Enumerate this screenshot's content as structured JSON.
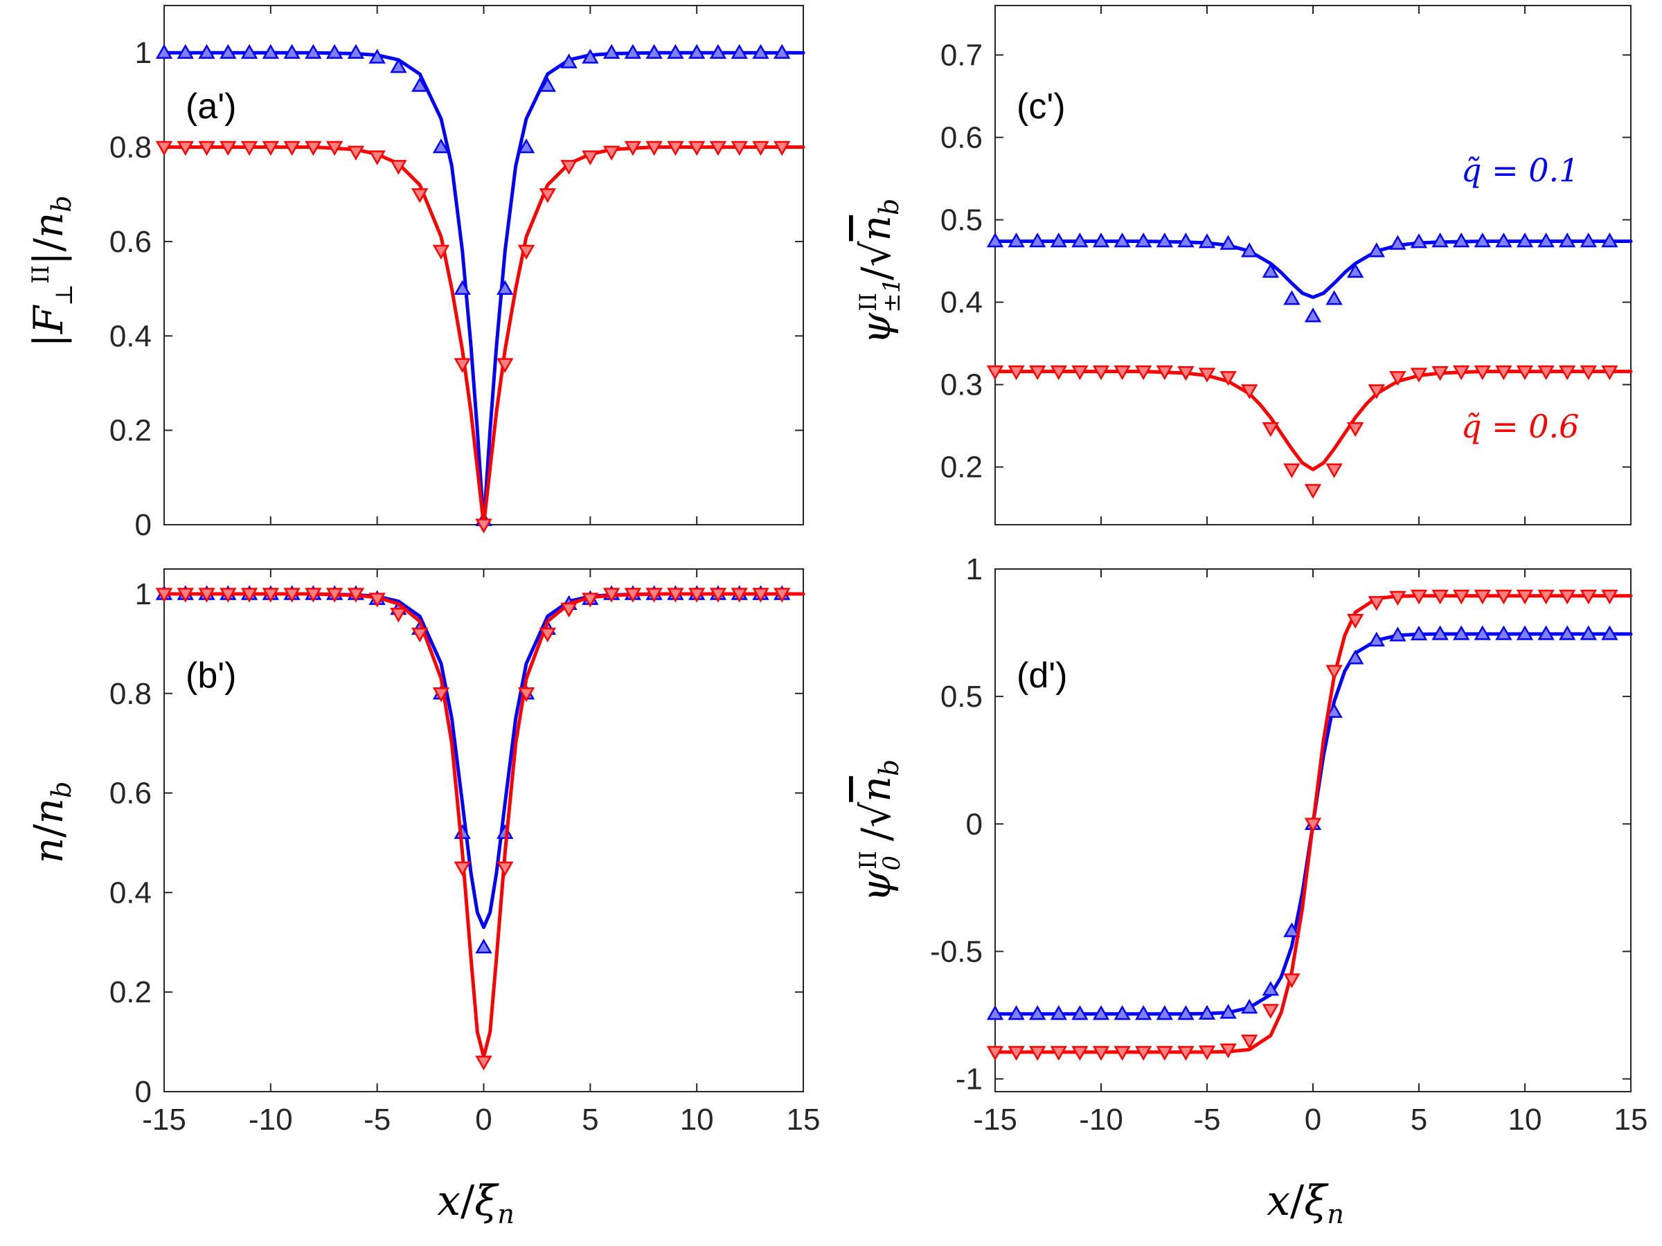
{
  "chart_data": [
    {
      "id": "a",
      "type": "line",
      "panel_label": "(a')",
      "ylabel": "|F⊥II|/nb",
      "xlabel": "",
      "xlim": [
        -15,
        15
      ],
      "ylim": [
        0,
        1.1
      ],
      "yticks": [
        "0",
        "0.2",
        "0.4",
        "0.6",
        "0.8",
        "1"
      ],
      "xticks": [],
      "grid": false,
      "series": [
        {
          "name": "q̃ = 0.1 (fit)",
          "color": "#0000ff",
          "kind": "line",
          "x": [
            -15,
            -8,
            -6,
            -5,
            -4,
            -3,
            -2,
            -1.5,
            -1,
            -0.6,
            -0.3,
            0,
            0.3,
            0.6,
            1,
            1.5,
            2,
            3,
            4,
            5,
            6,
            8,
            15
          ],
          "y": [
            1,
            1,
            0.998,
            0.995,
            0.985,
            0.955,
            0.86,
            0.76,
            0.58,
            0.38,
            0.2,
            0,
            0.2,
            0.38,
            0.58,
            0.76,
            0.86,
            0.955,
            0.985,
            0.995,
            0.998,
            1,
            1
          ]
        },
        {
          "name": "q̃ = 0.1 (numerical)",
          "color": "#0000ff",
          "kind": "marker",
          "marker": "triangle-up",
          "x": [
            -15,
            -14,
            -13,
            -12,
            -11,
            -10,
            -9,
            -8,
            -7,
            -6,
            -5,
            -4,
            -3,
            -2,
            -1,
            0,
            1,
            2,
            3,
            4,
            5,
            6,
            7,
            8,
            9,
            10,
            11,
            12,
            13,
            14
          ],
          "y": [
            1,
            1,
            1,
            1,
            1,
            1,
            1,
            1,
            1,
            1,
            0.99,
            0.97,
            0.93,
            0.8,
            0.5,
            0.01,
            0.5,
            0.8,
            0.93,
            0.98,
            0.99,
            1,
            1,
            1,
            1,
            1,
            1,
            1,
            1,
            1
          ]
        },
        {
          "name": "q̃ = 0.6 (fit)",
          "color": "#ff0000",
          "kind": "line",
          "x": [
            -15,
            -8,
            -6,
            -5,
            -4,
            -3,
            -2,
            -1.5,
            -1,
            -0.6,
            -0.3,
            0,
            0.3,
            0.6,
            1,
            1.5,
            2,
            3,
            4,
            5,
            6,
            8,
            15
          ],
          "y": [
            0.8,
            0.8,
            0.795,
            0.785,
            0.765,
            0.72,
            0.61,
            0.5,
            0.37,
            0.24,
            0.12,
            0,
            0.12,
            0.24,
            0.37,
            0.5,
            0.61,
            0.72,
            0.765,
            0.785,
            0.795,
            0.8,
            0.8
          ]
        },
        {
          "name": "q̃ = 0.6 (numerical)",
          "color": "#ff0000",
          "kind": "marker",
          "marker": "triangle-down",
          "x": [
            -15,
            -14,
            -13,
            -12,
            -11,
            -10,
            -9,
            -8,
            -7,
            -6,
            -5,
            -4,
            -3,
            -2,
            -1,
            0,
            1,
            2,
            3,
            4,
            5,
            6,
            7,
            8,
            9,
            10,
            11,
            12,
            13,
            14
          ],
          "y": [
            0.8,
            0.8,
            0.8,
            0.8,
            0.8,
            0.8,
            0.8,
            0.8,
            0.8,
            0.79,
            0.78,
            0.76,
            0.7,
            0.58,
            0.34,
            0,
            0.34,
            0.58,
            0.7,
            0.76,
            0.78,
            0.79,
            0.8,
            0.8,
            0.8,
            0.8,
            0.8,
            0.8,
            0.8,
            0.8
          ]
        }
      ]
    },
    {
      "id": "b",
      "type": "line",
      "panel_label": "(b')",
      "ylabel": "n/nb",
      "xlabel": "x/ξn",
      "xlim": [
        -15,
        15
      ],
      "ylim": [
        0,
        1.05
      ],
      "yticks": [
        "0",
        "0.2",
        "0.4",
        "0.6",
        "0.8",
        "1"
      ],
      "xticks": [
        "-15",
        "-10",
        "-5",
        "0",
        "5",
        "10",
        "15"
      ],
      "grid": false,
      "series": [
        {
          "name": "q̃ = 0.1 (fit)",
          "color": "#0000ff",
          "kind": "line",
          "x": [
            -15,
            -8,
            -6,
            -5,
            -4,
            -3,
            -2,
            -1.5,
            -1,
            -0.6,
            -0.3,
            0,
            0.3,
            0.6,
            1,
            1.5,
            2,
            3,
            4,
            5,
            6,
            8,
            15
          ],
          "y": [
            1,
            1,
            0.998,
            0.995,
            0.985,
            0.955,
            0.86,
            0.75,
            0.58,
            0.44,
            0.36,
            0.33,
            0.36,
            0.44,
            0.58,
            0.75,
            0.86,
            0.955,
            0.985,
            0.995,
            0.998,
            1,
            1
          ]
        },
        {
          "name": "q̃ = 0.1 (numerical)",
          "color": "#0000ff",
          "kind": "marker",
          "marker": "triangle-up",
          "x": [
            -15,
            -14,
            -13,
            -12,
            -11,
            -10,
            -9,
            -8,
            -7,
            -6,
            -5,
            -4,
            -3,
            -2,
            -1,
            0,
            1,
            2,
            3,
            4,
            5,
            6,
            7,
            8,
            9,
            10,
            11,
            12,
            13,
            14
          ],
          "y": [
            1,
            1,
            1,
            1,
            1,
            1,
            1,
            1,
            1,
            1,
            0.99,
            0.97,
            0.93,
            0.8,
            0.52,
            0.29,
            0.52,
            0.8,
            0.93,
            0.98,
            0.99,
            1,
            1,
            1,
            1,
            1,
            1,
            1,
            1,
            1
          ]
        },
        {
          "name": "q̃ = 0.6 (fit)",
          "color": "#ff0000",
          "kind": "line",
          "x": [
            -15,
            -8,
            -6,
            -5,
            -4,
            -3,
            -2,
            -1.5,
            -1,
            -0.6,
            -0.3,
            0,
            0.3,
            0.6,
            1,
            1.5,
            2,
            3,
            4,
            5,
            6,
            8,
            15
          ],
          "y": [
            1,
            1,
            0.997,
            0.993,
            0.98,
            0.945,
            0.83,
            0.7,
            0.48,
            0.27,
            0.12,
            0.07,
            0.12,
            0.27,
            0.48,
            0.7,
            0.83,
            0.945,
            0.98,
            0.993,
            0.997,
            1,
            1
          ]
        },
        {
          "name": "q̃ = 0.6 (numerical)",
          "color": "#ff0000",
          "kind": "marker",
          "marker": "triangle-down",
          "x": [
            -15,
            -14,
            -13,
            -12,
            -11,
            -10,
            -9,
            -8,
            -7,
            -6,
            -5,
            -4,
            -3,
            -2,
            -1,
            0,
            1,
            2,
            3,
            4,
            5,
            6,
            7,
            8,
            9,
            10,
            11,
            12,
            13,
            14
          ],
          "y": [
            1,
            1,
            1,
            1,
            1,
            1,
            1,
            1,
            1,
            1,
            0.99,
            0.96,
            0.92,
            0.8,
            0.45,
            0.06,
            0.45,
            0.8,
            0.92,
            0.97,
            0.99,
            1,
            1,
            1,
            1,
            1,
            1,
            1,
            1,
            1
          ]
        }
      ]
    },
    {
      "id": "c",
      "type": "line",
      "panel_label": "(c')",
      "ylabel": "ψ±1II/√nb",
      "xlabel": "",
      "xlim": [
        -15,
        15
      ],
      "ylim": [
        0.13,
        0.76
      ],
      "yticks": [
        "0.2",
        "0.3",
        "0.4",
        "0.5",
        "0.6",
        "0.7"
      ],
      "xticks": [],
      "grid": false,
      "annotations": [
        {
          "text": "q̃ = 0.1",
          "color": "#0000ff"
        },
        {
          "text": "q̃ = 0.6",
          "color": "#ff0000"
        }
      ],
      "series": [
        {
          "name": "q̃ = 0.1 (fit)",
          "color": "#0000ff",
          "kind": "line",
          "x": [
            -15,
            -8,
            -6,
            -5,
            -4,
            -3,
            -2,
            -1.5,
            -1,
            -0.5,
            0,
            0.5,
            1,
            1.5,
            2,
            3,
            4,
            5,
            6,
            8,
            15
          ],
          "y": [
            0.474,
            0.474,
            0.473,
            0.472,
            0.469,
            0.462,
            0.447,
            0.436,
            0.423,
            0.411,
            0.406,
            0.411,
            0.423,
            0.436,
            0.447,
            0.462,
            0.469,
            0.472,
            0.473,
            0.474,
            0.474
          ]
        },
        {
          "name": "q̃ = 0.1 (numerical)",
          "color": "#0000ff",
          "kind": "marker",
          "marker": "triangle-up",
          "x": [
            -15,
            -14,
            -13,
            -12,
            -11,
            -10,
            -9,
            -8,
            -7,
            -6,
            -5,
            -4,
            -3,
            -2,
            -1,
            0,
            1,
            2,
            3,
            4,
            5,
            6,
            7,
            8,
            9,
            10,
            11,
            12,
            13,
            14
          ],
          "y": [
            0.474,
            0.474,
            0.474,
            0.474,
            0.474,
            0.474,
            0.474,
            0.474,
            0.474,
            0.474,
            0.473,
            0.471,
            0.462,
            0.437,
            0.404,
            0.383,
            0.404,
            0.437,
            0.462,
            0.471,
            0.473,
            0.474,
            0.474,
            0.474,
            0.474,
            0.474,
            0.474,
            0.474,
            0.474,
            0.474
          ]
        },
        {
          "name": "q̃ = 0.6 (fit)",
          "color": "#ff0000",
          "kind": "line",
          "x": [
            -15,
            -8,
            -6,
            -5,
            -4,
            -3,
            -2.5,
            -2,
            -1.5,
            -1,
            -0.5,
            0,
            0.5,
            1,
            1.5,
            2,
            2.5,
            3,
            4,
            5,
            6,
            8,
            15
          ],
          "y": [
            0.316,
            0.316,
            0.314,
            0.311,
            0.304,
            0.289,
            0.276,
            0.26,
            0.241,
            0.222,
            0.205,
            0.197,
            0.205,
            0.222,
            0.241,
            0.26,
            0.276,
            0.289,
            0.304,
            0.311,
            0.314,
            0.316,
            0.316
          ]
        },
        {
          "name": "q̃ = 0.6 (numerical)",
          "color": "#ff0000",
          "kind": "marker",
          "marker": "triangle-down",
          "x": [
            -15,
            -14,
            -13,
            -12,
            -11,
            -10,
            -9,
            -8,
            -7,
            -6,
            -5,
            -4,
            -3,
            -2,
            -1,
            0,
            1,
            2,
            3,
            4,
            5,
            6,
            7,
            8,
            9,
            10,
            11,
            12,
            13,
            14
          ],
          "y": [
            0.316,
            0.316,
            0.316,
            0.316,
            0.316,
            0.316,
            0.316,
            0.316,
            0.316,
            0.315,
            0.313,
            0.309,
            0.293,
            0.247,
            0.197,
            0.172,
            0.197,
            0.247,
            0.293,
            0.309,
            0.313,
            0.315,
            0.316,
            0.316,
            0.316,
            0.316,
            0.316,
            0.316,
            0.316,
            0.316
          ]
        }
      ]
    },
    {
      "id": "d",
      "type": "line",
      "panel_label": "(d')",
      "ylabel": "ψ0II/√nb",
      "xlabel": "x/ξn",
      "xlim": [
        -15,
        15
      ],
      "ylim": [
        -1.05,
        1
      ],
      "yticks": [
        "-1",
        "-0.5",
        "0",
        "0.5",
        "1"
      ],
      "xticks": [
        "-15",
        "-10",
        "-5",
        "0",
        "5",
        "10",
        "15"
      ],
      "grid": false,
      "series": [
        {
          "name": "q̃ = 0.1 (fit)",
          "color": "#0000ff",
          "kind": "line",
          "x": [
            -15,
            -6,
            -5,
            -4,
            -3,
            -2,
            -1.5,
            -1,
            -0.5,
            0,
            0.5,
            1,
            1.5,
            2,
            3,
            4,
            5,
            6,
            15
          ],
          "y": [
            -0.745,
            -0.745,
            -0.744,
            -0.74,
            -0.72,
            -0.67,
            -0.6,
            -0.48,
            -0.27,
            0,
            0.27,
            0.48,
            0.6,
            0.67,
            0.72,
            0.74,
            0.744,
            0.745,
            0.745
          ]
        },
        {
          "name": "q̃ = 0.1 (numerical)",
          "color": "#0000ff",
          "kind": "marker",
          "marker": "triangle-up",
          "x": [
            -15,
            -14,
            -13,
            -12,
            -11,
            -10,
            -9,
            -8,
            -7,
            -6,
            -5,
            -4,
            -3,
            -2,
            -1,
            0,
            1,
            2,
            3,
            4,
            5,
            6,
            7,
            8,
            9,
            10,
            11,
            12,
            13,
            14
          ],
          "y": [
            -0.745,
            -0.745,
            -0.745,
            -0.745,
            -0.745,
            -0.745,
            -0.745,
            -0.745,
            -0.745,
            -0.745,
            -0.744,
            -0.74,
            -0.72,
            -0.65,
            -0.42,
            0,
            0.44,
            0.65,
            0.72,
            0.74,
            0.744,
            0.745,
            0.745,
            0.745,
            0.745,
            0.745,
            0.745,
            0.745,
            0.745,
            0.745
          ]
        },
        {
          "name": "q̃ = 0.6 (fit)",
          "color": "#ff0000",
          "kind": "line",
          "x": [
            -15,
            -5,
            -4,
            -3,
            -2,
            -1.5,
            -1,
            -0.5,
            0,
            0.5,
            1,
            1.5,
            2,
            3,
            4,
            5,
            15
          ],
          "y": [
            -0.895,
            -0.895,
            -0.893,
            -0.885,
            -0.83,
            -0.74,
            -0.58,
            -0.33,
            0,
            0.33,
            0.58,
            0.74,
            0.83,
            0.885,
            0.893,
            0.895,
            0.895
          ]
        },
        {
          "name": "q̃ = 0.6 (numerical)",
          "color": "#ff0000",
          "kind": "marker",
          "marker": "triangle-down",
          "x": [
            -15,
            -14,
            -13,
            -12,
            -11,
            -10,
            -9,
            -8,
            -7,
            -6,
            -5,
            -4,
            -3,
            -2,
            -1,
            0,
            1,
            2,
            3,
            4,
            5,
            6,
            7,
            8,
            9,
            10,
            11,
            12,
            13,
            14
          ],
          "y": [
            -0.895,
            -0.895,
            -0.895,
            -0.895,
            -0.895,
            -0.895,
            -0.895,
            -0.895,
            -0.895,
            -0.895,
            -0.893,
            -0.885,
            -0.85,
            -0.73,
            -0.61,
            0,
            0.6,
            0.8,
            0.87,
            0.89,
            0.895,
            0.895,
            0.895,
            0.895,
            0.895,
            0.895,
            0.895,
            0.895,
            0.895,
            0.895
          ]
        }
      ]
    }
  ]
}
